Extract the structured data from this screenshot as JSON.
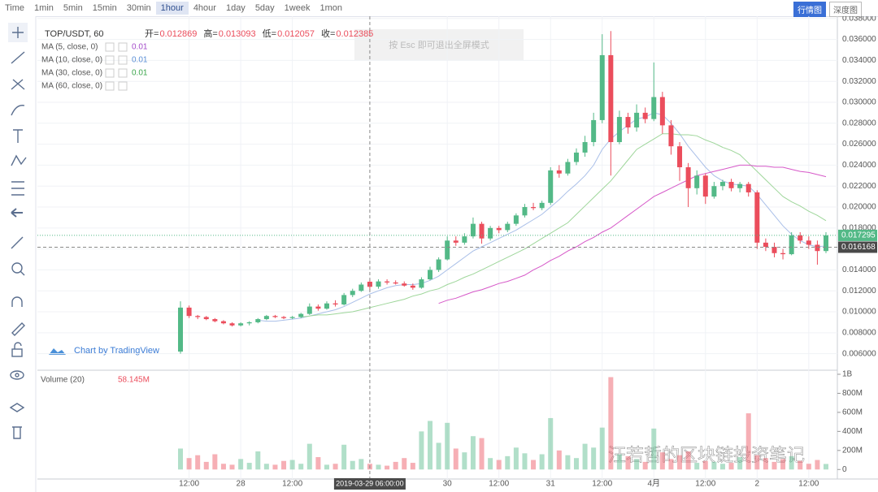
{
  "toolbar": {
    "intervals": [
      "Time",
      "1min",
      "5min",
      "15min",
      "30min",
      "1hour",
      "4hour",
      "1day",
      "5day",
      "1week",
      "1mon"
    ],
    "active_interval": "1hour",
    "views": [
      "行情图",
      "深度图"
    ],
    "active_view": "行情图"
  },
  "esc_notice": "按 Esc 即可退出全屏模式",
  "watermark": "Chart by TradingView",
  "wechat_watermark": "汪若哲的区块链投资笔记",
  "chart_data": {
    "type": "candlestick",
    "symbol": "TOP/USDT, 60",
    "ohlc_labels": [
      "开=",
      "高=",
      "低=",
      "收="
    ],
    "up_color": "#53b987",
    "down_color": "#eb4d5c",
    "ohlc": [
      [
        0.0062,
        0.011,
        0.006,
        0.0104
      ],
      [
        0.0104,
        0.0106,
        0.0094,
        0.0096
      ],
      [
        0.0096,
        0.0097,
        0.0093,
        0.0095
      ],
      [
        0.0095,
        0.0096,
        0.0092,
        0.0093
      ],
      [
        0.0093,
        0.0094,
        0.009,
        0.0091
      ],
      [
        0.0091,
        0.0092,
        0.0088,
        0.0089
      ],
      [
        0.0089,
        0.009,
        0.0086,
        0.0087
      ],
      [
        0.0087,
        0.009,
        0.0086,
        0.0089
      ],
      [
        0.0089,
        0.0091,
        0.0087,
        0.009
      ],
      [
        0.009,
        0.0094,
        0.0089,
        0.0093
      ],
      [
        0.0093,
        0.0097,
        0.0092,
        0.0096
      ],
      [
        0.0096,
        0.0097,
        0.0094,
        0.0095
      ],
      [
        0.0095,
        0.0096,
        0.0093,
        0.0094
      ],
      [
        0.0094,
        0.0096,
        0.0093,
        0.0095
      ],
      [
        0.0095,
        0.0099,
        0.0094,
        0.0098
      ],
      [
        0.0098,
        0.0108,
        0.0097,
        0.0105
      ],
      [
        0.0105,
        0.0107,
        0.0101,
        0.0103
      ],
      [
        0.0103,
        0.011,
        0.0102,
        0.0108
      ],
      [
        0.0108,
        0.0111,
        0.0105,
        0.0107
      ],
      [
        0.0107,
        0.0118,
        0.0106,
        0.0116
      ],
      [
        0.0116,
        0.0122,
        0.0114,
        0.012
      ],
      [
        0.012,
        0.0128,
        0.0119,
        0.0126
      ],
      [
        0.012869,
        0.013093,
        0.012057,
        0.012385
      ],
      [
        0.0124,
        0.0131,
        0.0122,
        0.0129
      ],
      [
        0.0129,
        0.0131,
        0.0126,
        0.0128
      ],
      [
        0.0128,
        0.013,
        0.0126,
        0.0127
      ],
      [
        0.0127,
        0.0129,
        0.0124,
        0.0125
      ],
      [
        0.0125,
        0.0127,
        0.0121,
        0.0123
      ],
      [
        0.0123,
        0.0133,
        0.0122,
        0.0131
      ],
      [
        0.0131,
        0.0143,
        0.013,
        0.014
      ],
      [
        0.014,
        0.0152,
        0.0138,
        0.015
      ],
      [
        0.015,
        0.0172,
        0.0149,
        0.0168
      ],
      [
        0.0168,
        0.0172,
        0.0163,
        0.0166
      ],
      [
        0.0166,
        0.0175,
        0.0164,
        0.0172
      ],
      [
        0.0172,
        0.019,
        0.017,
        0.0184
      ],
      [
        0.0184,
        0.0186,
        0.0165,
        0.017
      ],
      [
        0.017,
        0.0182,
        0.0168,
        0.018
      ],
      [
        0.018,
        0.0182,
        0.0175,
        0.0178
      ],
      [
        0.0178,
        0.0186,
        0.0176,
        0.0184
      ],
      [
        0.0184,
        0.0194,
        0.0182,
        0.0192
      ],
      [
        0.0192,
        0.0203,
        0.019,
        0.02
      ],
      [
        0.02,
        0.0204,
        0.0197,
        0.0199
      ],
      [
        0.0199,
        0.0206,
        0.0197,
        0.0204
      ],
      [
        0.0204,
        0.0238,
        0.0202,
        0.0235
      ],
      [
        0.0235,
        0.024,
        0.0228,
        0.0232
      ],
      [
        0.0232,
        0.0246,
        0.023,
        0.0243
      ],
      [
        0.0243,
        0.0256,
        0.024,
        0.0252
      ],
      [
        0.0252,
        0.0268,
        0.0248,
        0.0262
      ],
      [
        0.0262,
        0.029,
        0.0258,
        0.0283
      ],
      [
        0.0283,
        0.0365,
        0.028,
        0.0345
      ],
      [
        0.0345,
        0.0368,
        0.023,
        0.0262
      ],
      [
        0.0262,
        0.0292,
        0.026,
        0.0286
      ],
      [
        0.0286,
        0.029,
        0.027,
        0.0276
      ],
      [
        0.0276,
        0.0298,
        0.0272,
        0.029
      ],
      [
        0.029,
        0.0295,
        0.028,
        0.0284
      ],
      [
        0.0284,
        0.0338,
        0.0282,
        0.0305
      ],
      [
        0.0305,
        0.031,
        0.027,
        0.0278
      ],
      [
        0.0278,
        0.0283,
        0.025,
        0.0258
      ],
      [
        0.0258,
        0.0262,
        0.0225,
        0.0238
      ],
      [
        0.0238,
        0.0242,
        0.02,
        0.0218
      ],
      [
        0.0218,
        0.0235,
        0.0212,
        0.023
      ],
      [
        0.023,
        0.0232,
        0.0203,
        0.021
      ],
      [
        0.021,
        0.0224,
        0.0208,
        0.022
      ],
      [
        0.022,
        0.0226,
        0.0216,
        0.0224
      ],
      [
        0.0224,
        0.0227,
        0.0215,
        0.0218
      ],
      [
        0.0218,
        0.0224,
        0.0214,
        0.0222
      ],
      [
        0.0222,
        0.0224,
        0.021,
        0.0214
      ],
      [
        0.0214,
        0.0216,
        0.016,
        0.0166
      ],
      [
        0.0166,
        0.017,
        0.0158,
        0.0162
      ],
      [
        0.0162,
        0.0166,
        0.0152,
        0.0156
      ],
      [
        0.0156,
        0.016,
        0.015,
        0.0155
      ],
      [
        0.0155,
        0.0176,
        0.0154,
        0.0173
      ],
      [
        0.0173,
        0.0176,
        0.0165,
        0.0168
      ],
      [
        0.0168,
        0.0172,
        0.016,
        0.0164
      ],
      [
        0.0164,
        0.0168,
        0.0145,
        0.0158
      ],
      [
        0.0158,
        0.0176,
        0.0156,
        0.017295
      ]
    ],
    "ma_legend": [
      {
        "name": "MA (5, close, 0)",
        "value": "0.01",
        "color": "#a34bc9"
      },
      {
        "name": "MA (10, close, 0)",
        "value": "0.01",
        "color": "#5b8fd6"
      },
      {
        "name": "MA (30, close, 0)",
        "value": "0.01",
        "color": "#3aa54a"
      },
      {
        "name": "MA (60, close, 0)"
      }
    ],
    "series": [
      {
        "color": "#a9bfe8",
        "values": [
          null,
          null,
          null,
          null,
          null,
          null,
          null,
          null,
          null,
          0.0092,
          0.0091,
          0.0091,
          0.0092,
          0.0093,
          0.0094,
          0.0096,
          0.0098,
          0.01,
          0.0102,
          0.0105,
          0.0109,
          0.0113,
          0.0117,
          0.012,
          0.0123,
          0.0125,
          0.0126,
          0.0126,
          0.0127,
          0.013,
          0.0134,
          0.014,
          0.0146,
          0.0152,
          0.0158,
          0.0162,
          0.0166,
          0.017,
          0.0174,
          0.0178,
          0.0183,
          0.0188,
          0.0193,
          0.02,
          0.0207,
          0.0215,
          0.0222,
          0.023,
          0.024,
          0.0255,
          0.0265,
          0.0272,
          0.0278,
          0.0284,
          0.0286,
          0.029,
          0.0288,
          0.028,
          0.027,
          0.0258,
          0.0248,
          0.0238,
          0.023,
          0.0225,
          0.0222,
          0.0221,
          0.022,
          0.0212,
          0.0202,
          0.0192,
          0.0182,
          0.0174,
          0.0168,
          0.0164,
          0.0162,
          0.0163
        ]
      },
      {
        "color": "#9ed69a",
        "values": [
          null,
          null,
          null,
          null,
          null,
          null,
          null,
          null,
          null,
          null,
          null,
          null,
          null,
          null,
          0.0095,
          0.0096,
          0.0097,
          0.0097,
          0.0098,
          0.0099,
          0.01,
          0.0102,
          0.0104,
          0.0106,
          0.0108,
          0.011,
          0.0112,
          0.0115,
          0.0117,
          0.012,
          0.0122,
          0.0126,
          0.0129,
          0.0133,
          0.0136,
          0.014,
          0.0144,
          0.0148,
          0.0152,
          0.0156,
          0.016,
          0.0165,
          0.017,
          0.0175,
          0.018,
          0.0185,
          0.0193,
          0.0201,
          0.0209,
          0.0217,
          0.0225,
          0.0235,
          0.0245,
          0.0255,
          0.026,
          0.0265,
          0.027,
          0.027,
          0.0269,
          0.0269,
          0.0268,
          0.0264,
          0.0261,
          0.0257,
          0.0254,
          0.025,
          0.0242,
          0.0234,
          0.0226,
          0.0218,
          0.021,
          0.0205,
          0.0201,
          0.0196,
          0.0192,
          0.0187
        ]
      },
      {
        "color": "#d658c8",
        "values": [
          null,
          null,
          null,
          null,
          null,
          null,
          null,
          null,
          null,
          null,
          null,
          null,
          null,
          null,
          null,
          null,
          null,
          null,
          null,
          null,
          null,
          null,
          null,
          null,
          null,
          null,
          null,
          null,
          null,
          null,
          0.0108,
          0.0111,
          0.0113,
          0.0116,
          0.0119,
          0.0121,
          0.0124,
          0.0127,
          0.0129,
          0.0132,
          0.0135,
          0.014,
          0.0144,
          0.0149,
          0.0153,
          0.0158,
          0.0162,
          0.0167,
          0.0171,
          0.0176,
          0.018,
          0.0186,
          0.0192,
          0.0198,
          0.0204,
          0.021,
          0.0214,
          0.0218,
          0.0222,
          0.0226,
          0.023,
          0.0232,
          0.0234,
          0.0236,
          0.0238,
          0.024,
          0.024,
          0.0239,
          0.0239,
          0.0238,
          0.0238,
          0.0236,
          0.0234,
          0.0233,
          0.0231,
          0.0229
        ]
      }
    ],
    "ylim": [
      0.0045,
      0.03806
    ],
    "yticks": [
      {
        "value": 0.006,
        "label": "0.006000"
      },
      {
        "value": 0.008,
        "label": "0.008000"
      },
      {
        "value": 0.01,
        "label": "0.010000"
      },
      {
        "value": 0.012,
        "label": "0.012000"
      },
      {
        "value": 0.014,
        "label": "0.014000"
      },
      {
        "value": 0.016,
        "label": "0.016000"
      },
      {
        "value": 0.018,
        "label": "0.018000"
      },
      {
        "value": 0.02,
        "label": "0.020000"
      },
      {
        "value": 0.022,
        "label": "0.022000"
      },
      {
        "value": 0.024,
        "label": "0.024000"
      },
      {
        "value": 0.026,
        "label": "0.026000"
      },
      {
        "value": 0.028,
        "label": "0.028000"
      },
      {
        "value": 0.03,
        "label": "0.030000"
      },
      {
        "value": 0.032,
        "label": "0.032000"
      },
      {
        "value": 0.034,
        "label": "0.034000"
      },
      {
        "value": 0.036,
        "label": "0.036000"
      },
      {
        "value": 0.038,
        "label": "0.038000"
      }
    ],
    "xticks": [
      {
        "value": 1,
        "label": "12:00"
      },
      {
        "value": 7,
        "label": "28"
      },
      {
        "value": 13,
        "label": "12:00"
      },
      {
        "value": 31,
        "label": "30"
      },
      {
        "value": 37,
        "label": "12:00"
      },
      {
        "value": 43,
        "label": "31"
      },
      {
        "value": 49,
        "label": "12:00"
      },
      {
        "value": 55,
        "label": "4月"
      },
      {
        "value": 61,
        "label": "12:00"
      },
      {
        "value": 67,
        "label": "2"
      },
      {
        "value": 73,
        "label": "12:00"
      }
    ],
    "crosshair": {
      "index": 22,
      "label": "2019-03-29 06:00:00",
      "price": 0.016168
    },
    "volume_title": "Volume (20)",
    "volume": [
      220000000.0,
      120000000.0,
      150000000.0,
      80000000.0,
      160000000.0,
      60000000.0,
      50000000.0,
      110000000.0,
      70000000.0,
      190000000.0,
      60000000.0,
      50000000.0,
      90000000.0,
      100000000.0,
      60000000.0,
      270000000.0,
      130000000.0,
      50000000.0,
      60000000.0,
      260000000.0,
      90000000.0,
      110000000.0,
      60000000.0,
      50000000.0,
      40000000.0,
      80000000.0,
      120000000.0,
      70000000.0,
      400000000.0,
      510000000.0,
      280000000.0,
      490000000.0,
      220000000.0,
      180000000.0,
      350000000.0,
      330000000.0,
      120000000.0,
      100000000.0,
      140000000.0,
      230000000.0,
      170000000.0,
      100000000.0,
      160000000.0,
      540000000.0,
      200000000.0,
      150000000.0,
      120000000.0,
      270000000.0,
      230000000.0,
      440000000.0,
      970000000.0,
      160000000.0,
      140000000.0,
      110000000.0,
      80000000.0,
      430000000.0,
      180000000.0,
      110000000.0,
      150000000.0,
      190000000.0,
      70000000.0,
      90000000.0,
      80000000.0,
      60000000.0,
      70000000.0,
      130000000.0,
      590000000.0,
      150000000.0,
      120000000.0,
      80000000.0,
      110000000.0,
      140000000.0,
      90000000.0,
      60000000.0,
      100000000.0,
      58145000
    ],
    "volume_label": "58.145M",
    "volume_ylim": [
      -100000000.0,
      1000000000.0
    ],
    "volume_ticks": [
      0,
      {
        "value": 200000000.0,
        "label": "200M"
      },
      {
        "value": 400000000.0,
        "label": "400M"
      },
      {
        "value": 600000000.0,
        "label": "600M"
      },
      {
        "value": 800000000.0,
        "label": "800M"
      },
      {
        "value": 1000000000.0,
        "label": "1B"
      }
    ]
  }
}
